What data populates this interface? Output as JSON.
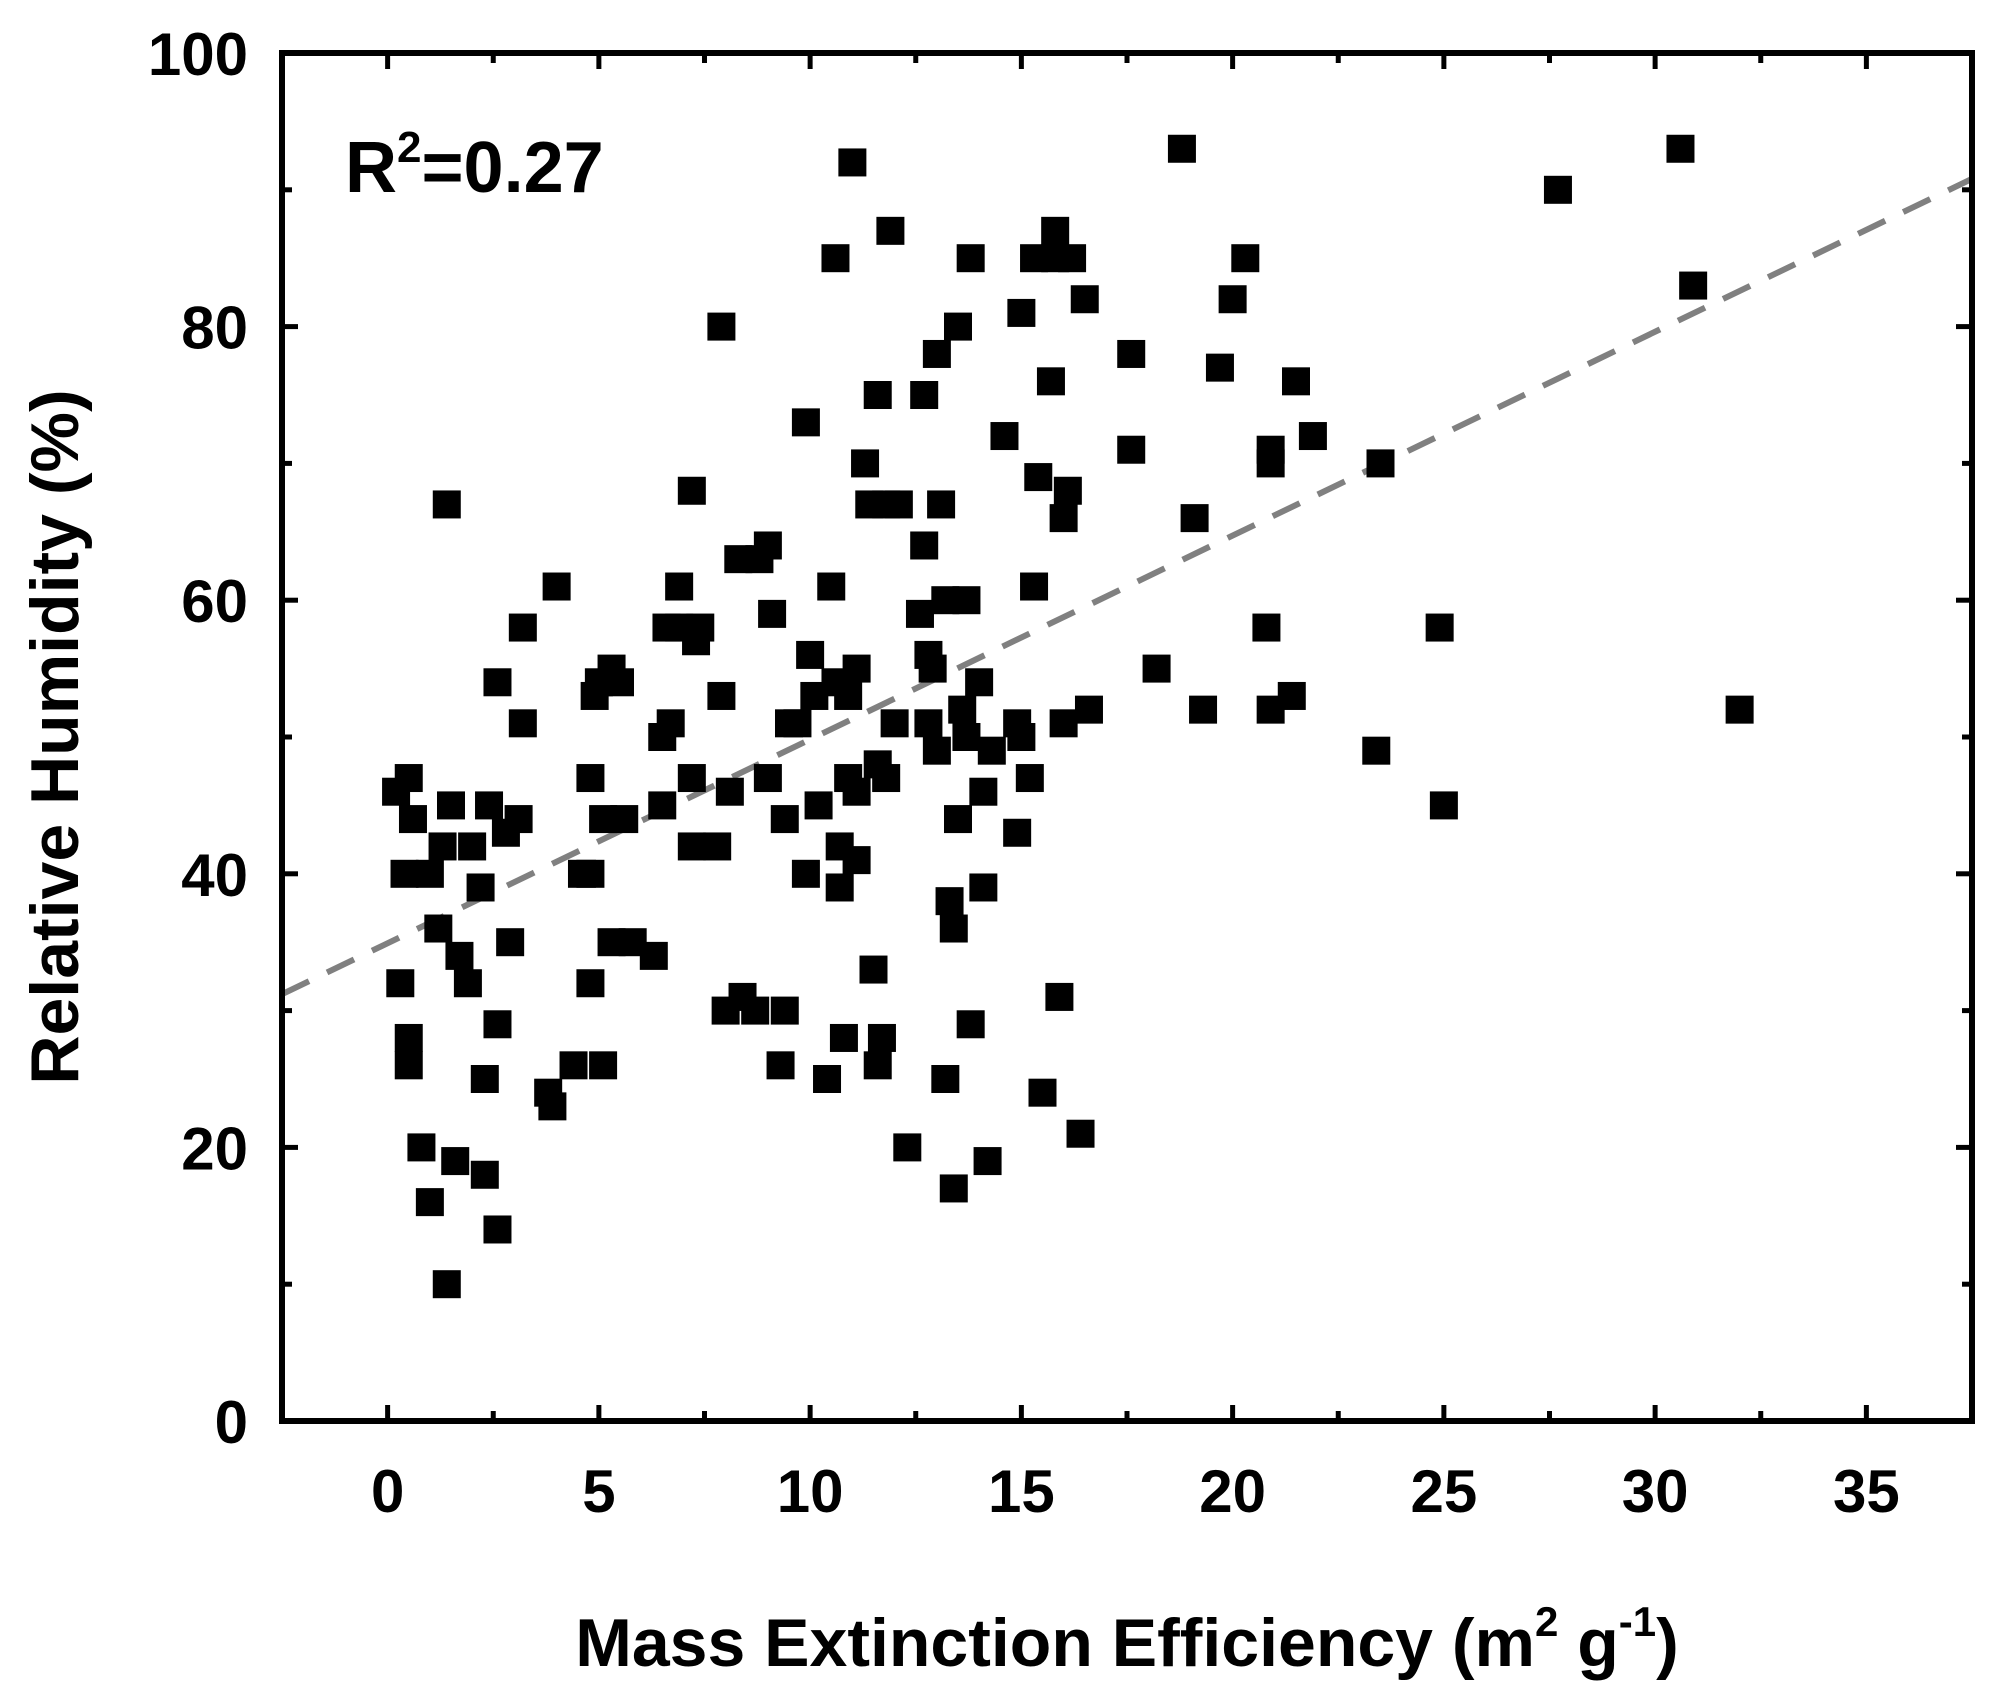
{
  "chart_data": {
    "type": "scatter",
    "title": "",
    "xlabel": {
      "text": "Mass Extinction Efficiency (m",
      "sup1": "2",
      "mid": " g",
      "sup2": "-1",
      "end": ")"
    },
    "ylabel": "Relative Humidity (%)",
    "annotation": {
      "base": "R",
      "sup": "2",
      "rest": "=0.27"
    },
    "xlim": [
      -2.5,
      37.5
    ],
    "ylim": [
      0,
      100
    ],
    "xticks": [
      0,
      5,
      10,
      15,
      20,
      25,
      30,
      35
    ],
    "xtick_labels": [
      "0",
      "5",
      "10",
      "15",
      "20",
      "25",
      "30",
      "35"
    ],
    "yticks": [
      0,
      20,
      40,
      60,
      80,
      100
    ],
    "ytick_labels": [
      "0",
      "20",
      "40",
      "60",
      "80",
      "100"
    ],
    "marker_color": "#000000",
    "fit_line": {
      "x": [
        -2.5,
        37.5
      ],
      "y": [
        31.2,
        90.8
      ],
      "color": "#808080",
      "style": "dashed"
    },
    "points": [
      [
        0.2,
        46
      ],
      [
        0.5,
        47
      ],
      [
        0.6,
        44
      ],
      [
        0.4,
        40
      ],
      [
        1.0,
        40
      ],
      [
        0.3,
        32
      ],
      [
        0.5,
        28
      ],
      [
        0.5,
        26
      ],
      [
        0.8,
        20
      ],
      [
        1.0,
        16
      ],
      [
        1.4,
        10
      ],
      [
        1.6,
        19
      ],
      [
        1.5,
        45
      ],
      [
        1.3,
        42
      ],
      [
        1.2,
        36
      ],
      [
        1.7,
        34
      ],
      [
        1.9,
        32
      ],
      [
        2.0,
        42
      ],
      [
        2.2,
        39
      ],
      [
        2.3,
        25
      ],
      [
        2.3,
        18
      ],
      [
        2.4,
        45
      ],
      [
        2.6,
        14
      ],
      [
        2.6,
        29
      ],
      [
        2.6,
        54
      ],
      [
        2.8,
        43
      ],
      [
        2.9,
        35
      ],
      [
        3.1,
        44
      ],
      [
        3.2,
        58
      ],
      [
        3.2,
        51
      ],
      [
        1.4,
        67
      ],
      [
        3.8,
        24
      ],
      [
        3.9,
        23
      ],
      [
        4.0,
        61
      ],
      [
        4.4,
        26
      ],
      [
        4.6,
        40
      ],
      [
        4.8,
        47
      ],
      [
        4.8,
        40
      ],
      [
        4.8,
        32
      ],
      [
        4.9,
        53
      ],
      [
        5.0,
        54
      ],
      [
        5.1,
        26
      ],
      [
        5.1,
        44
      ],
      [
        5.3,
        55
      ],
      [
        5.5,
        54
      ],
      [
        5.6,
        44
      ],
      [
        5.3,
        35
      ],
      [
        5.8,
        35
      ],
      [
        6.3,
        34
      ],
      [
        6.5,
        45
      ],
      [
        6.5,
        50
      ],
      [
        6.6,
        58
      ],
      [
        6.7,
        51
      ],
      [
        6.9,
        58
      ],
      [
        6.9,
        61
      ],
      [
        7.2,
        47
      ],
      [
        7.2,
        42
      ],
      [
        7.2,
        68
      ],
      [
        7.3,
        57
      ],
      [
        7.4,
        58
      ],
      [
        7.8,
        42
      ],
      [
        7.9,
        53
      ],
      [
        7.9,
        80
      ],
      [
        8.0,
        30
      ],
      [
        8.1,
        46
      ],
      [
        8.3,
        63
      ],
      [
        8.4,
        31
      ],
      [
        8.7,
        30
      ],
      [
        8.8,
        63
      ],
      [
        9.0,
        47
      ],
      [
        9.0,
        64
      ],
      [
        9.1,
        59
      ],
      [
        9.3,
        26
      ],
      [
        9.4,
        30
      ],
      [
        9.4,
        44
      ],
      [
        9.5,
        51
      ],
      [
        9.7,
        51
      ],
      [
        9.9,
        40
      ],
      [
        9.9,
        73
      ],
      [
        10.0,
        56
      ],
      [
        10.1,
        53
      ],
      [
        10.2,
        45
      ],
      [
        10.4,
        25
      ],
      [
        10.5,
        61
      ],
      [
        10.6,
        54
      ],
      [
        10.6,
        85
      ],
      [
        10.7,
        42
      ],
      [
        10.7,
        39
      ],
      [
        10.8,
        28
      ],
      [
        10.9,
        47
      ],
      [
        10.9,
        53
      ],
      [
        11.0,
        92
      ],
      [
        11.1,
        55
      ],
      [
        11.1,
        41
      ],
      [
        11.1,
        46
      ],
      [
        11.3,
        70
      ],
      [
        11.4,
        67
      ],
      [
        11.5,
        33
      ],
      [
        11.6,
        26
      ],
      [
        11.6,
        75
      ],
      [
        11.6,
        48
      ],
      [
        11.7,
        28
      ],
      [
        11.8,
        47
      ],
      [
        11.8,
        67
      ],
      [
        11.9,
        87
      ],
      [
        12.0,
        51
      ],
      [
        12.1,
        67
      ],
      [
        12.3,
        20
      ],
      [
        12.6,
        59
      ],
      [
        12.7,
        75
      ],
      [
        12.7,
        64
      ],
      [
        12.8,
        56
      ],
      [
        12.8,
        51
      ],
      [
        12.9,
        55
      ],
      [
        13.0,
        78
      ],
      [
        13.0,
        49
      ],
      [
        13.1,
        67
      ],
      [
        13.2,
        25
      ],
      [
        13.2,
        60
      ],
      [
        13.3,
        38
      ],
      [
        13.4,
        17
      ],
      [
        13.4,
        36
      ],
      [
        13.5,
        44
      ],
      [
        13.5,
        80
      ],
      [
        13.6,
        52
      ],
      [
        13.7,
        60
      ],
      [
        13.7,
        50
      ],
      [
        13.8,
        85
      ],
      [
        13.8,
        29
      ],
      [
        14.0,
        54
      ],
      [
        14.1,
        46
      ],
      [
        14.1,
        39
      ],
      [
        14.2,
        19
      ],
      [
        14.3,
        49
      ],
      [
        14.6,
        72
      ],
      [
        14.9,
        51
      ],
      [
        14.9,
        43
      ],
      [
        15.0,
        81
      ],
      [
        15.0,
        50
      ],
      [
        15.2,
        47
      ],
      [
        15.3,
        61
      ],
      [
        15.3,
        85
      ],
      [
        15.4,
        69
      ],
      [
        15.5,
        24
      ],
      [
        15.7,
        76
      ],
      [
        15.8,
        85
      ],
      [
        15.8,
        87
      ],
      [
        15.9,
        31
      ],
      [
        16.0,
        66
      ],
      [
        16.0,
        51
      ],
      [
        16.1,
        68
      ],
      [
        16.2,
        85
      ],
      [
        16.4,
        21
      ],
      [
        16.5,
        82
      ],
      [
        16.6,
        52
      ],
      [
        17.6,
        71
      ],
      [
        17.6,
        78
      ],
      [
        18.2,
        55
      ],
      [
        18.8,
        93
      ],
      [
        19.1,
        66
      ],
      [
        19.3,
        52
      ],
      [
        19.7,
        77
      ],
      [
        20.0,
        82
      ],
      [
        20.3,
        85
      ],
      [
        20.8,
        58
      ],
      [
        20.9,
        71
      ],
      [
        20.9,
        52
      ],
      [
        20.9,
        70
      ],
      [
        21.4,
        53
      ],
      [
        21.5,
        76
      ],
      [
        21.9,
        72
      ],
      [
        23.4,
        49
      ],
      [
        23.5,
        70
      ],
      [
        24.9,
        58
      ],
      [
        25.0,
        45
      ],
      [
        27.7,
        90
      ],
      [
        30.6,
        93
      ],
      [
        30.9,
        83
      ],
      [
        32.0,
        52
      ]
    ]
  }
}
